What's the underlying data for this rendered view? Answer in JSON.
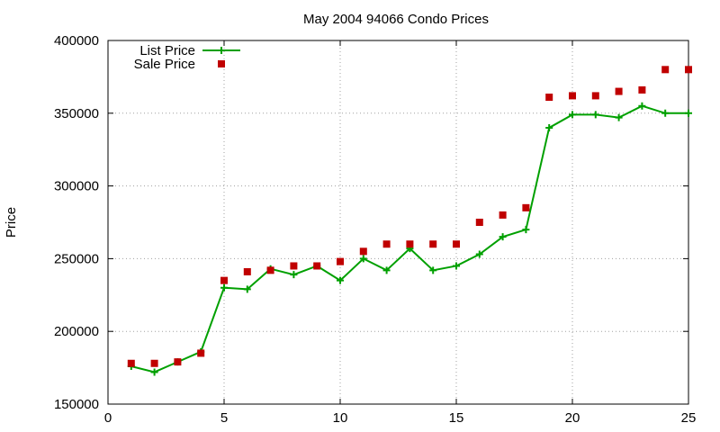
{
  "chart_data": {
    "type": "line",
    "title": "May 2004 94066 Condo Prices",
    "xlabel": "",
    "ylabel": "Price",
    "xlim": [
      0,
      25
    ],
    "ylim": [
      150000,
      400000
    ],
    "xticks": [
      0,
      5,
      10,
      15,
      20,
      25
    ],
    "yticks": [
      150000,
      200000,
      250000,
      300000,
      350000,
      400000
    ],
    "grid": true,
    "legend_position": "top-left",
    "series": [
      {
        "name": "List Price",
        "style": "lines+points",
        "marker": "plus",
        "color": "#00a000",
        "x": [
          1,
          2,
          3,
          4,
          5,
          6,
          7,
          8,
          9,
          10,
          11,
          12,
          13,
          14,
          15,
          16,
          17,
          18,
          19,
          20,
          21,
          22,
          23,
          24,
          25
        ],
        "y": [
          176000,
          172000,
          179000,
          186000,
          230000,
          229000,
          243000,
          239000,
          245000,
          235000,
          250000,
          242000,
          257000,
          242000,
          245000,
          253000,
          265000,
          270000,
          340000,
          349000,
          349000,
          347000,
          355000,
          350000,
          350000
        ]
      },
      {
        "name": "Sale Price",
        "style": "points",
        "marker": "square",
        "color": "#c00000",
        "x": [
          1,
          2,
          3,
          4,
          5,
          6,
          7,
          8,
          9,
          10,
          11,
          12,
          13,
          14,
          15,
          16,
          17,
          18,
          19,
          20,
          21,
          22,
          23,
          24,
          25
        ],
        "y": [
          178000,
          178000,
          179000,
          185000,
          235000,
          241000,
          242000,
          245000,
          245000,
          248000,
          255000,
          260000,
          260000,
          260000,
          260000,
          275000,
          280000,
          285000,
          361000,
          362000,
          362000,
          365000,
          366000,
          380000,
          380000
        ]
      }
    ]
  }
}
